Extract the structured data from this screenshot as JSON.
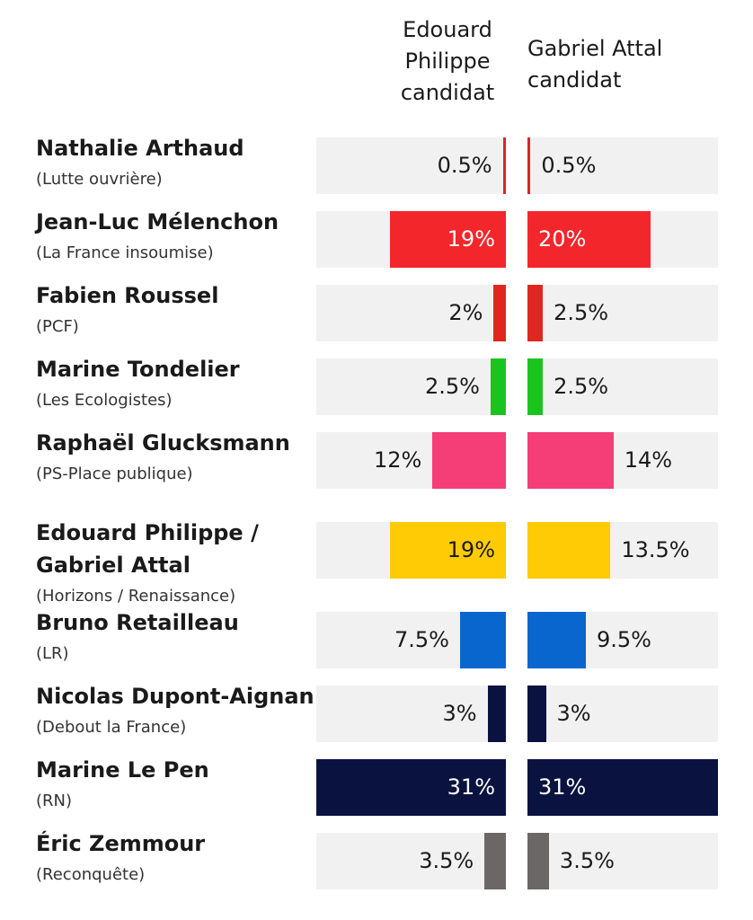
{
  "column_headers": {
    "left": [
      "Edouard",
      "Philippe",
      "candidat"
    ],
    "right": [
      "Gabriel Attal",
      "candidat"
    ]
  },
  "chart_data": {
    "type": "bar",
    "series": [
      {
        "name": "Edouard Philippe candidat",
        "values": [
          0.5,
          19,
          2,
          2.5,
          12,
          19,
          7.5,
          3,
          31,
          3.5
        ]
      },
      {
        "name": "Gabriel Attal candidat",
        "values": [
          0.5,
          20,
          2.5,
          2.5,
          14,
          13.5,
          9.5,
          3,
          31,
          3.5
        ]
      }
    ],
    "value_labels": {
      "left": [
        "0.5%",
        "19%",
        "2%",
        "2.5%",
        "12%",
        "19%",
        "7.5%",
        "3%",
        "31%",
        "3.5%"
      ],
      "right": [
        "0.5%",
        "20%",
        "2.5%",
        "2.5%",
        "14%",
        "13.5%",
        "9.5%",
        "3%",
        "31%",
        "3.5%"
      ]
    },
    "candidates": [
      {
        "name": [
          "Nathalie Arthaud"
        ],
        "party": "(Lutte ouvrière)",
        "color": "#d7262b"
      },
      {
        "name": [
          "Jean-Luc Mélenchon"
        ],
        "party": "(La France insoumise)",
        "color": "#f2262b"
      },
      {
        "name": [
          "Fabien Roussel"
        ],
        "party": "(PCF)",
        "color": "#e0271f"
      },
      {
        "name": [
          "Marine Tondelier"
        ],
        "party": "(Les Ecologistes)",
        "color": "#19c41f"
      },
      {
        "name": [
          "Raphaël Glucksmann"
        ],
        "party": "(PS-Place publique)",
        "color": "#f53d78"
      },
      {
        "name": [
          "Edouard Philippe /",
          "Gabriel Attal"
        ],
        "party": "(Horizons / Renaissance)",
        "color": "#ffcb05"
      },
      {
        "name": [
          "Bruno Retailleau"
        ],
        "party": "(LR)",
        "color": "#0a66cf"
      },
      {
        "name": [
          "Nicolas Dupont-Aignan"
        ],
        "party": "(Debout la France)",
        "color": "#0a1340"
      },
      {
        "name": [
          "Marine Le Pen"
        ],
        "party": "(RN)",
        "color": "#0a1340"
      },
      {
        "name": [
          "Éric Zemmour"
        ],
        "party": "(Reconquête)",
        "color": "#6b6767"
      }
    ],
    "xlim": [
      0,
      31
    ]
  }
}
